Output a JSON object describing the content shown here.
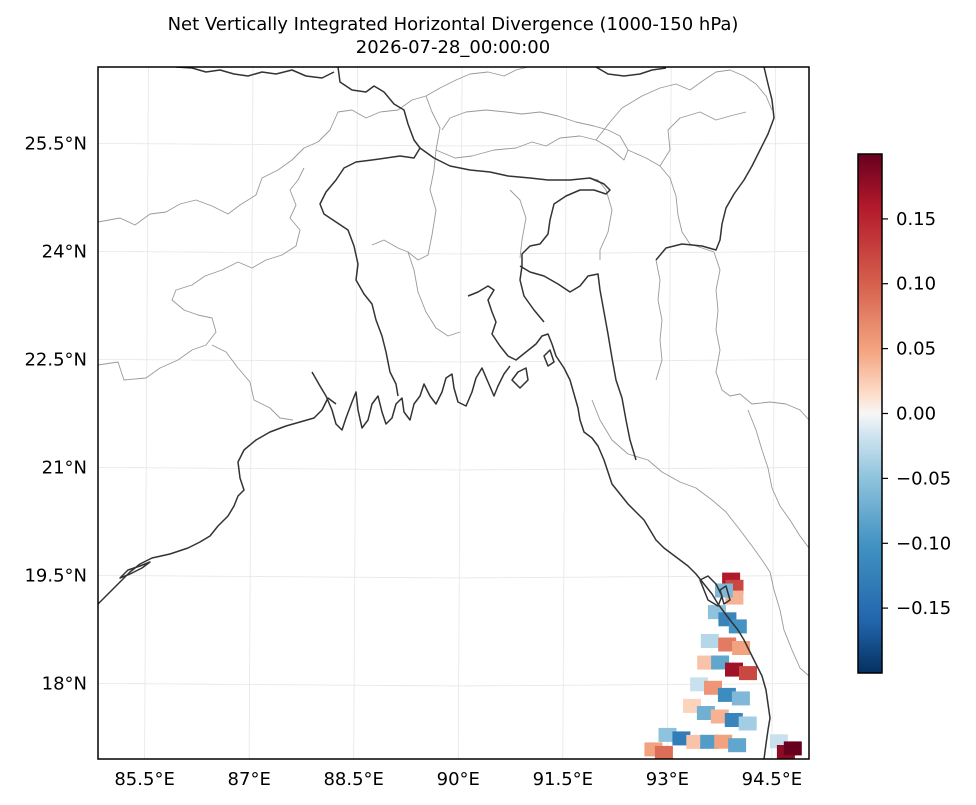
{
  "chart_data": {
    "type": "heatmap",
    "title": "Net Vertically Integrated Horizontal Divergence (1000-150 hPa)",
    "subtitle": "2026-07-28_00:00:00",
    "xlabel": "",
    "ylabel": "",
    "x_ticks": [
      85.5,
      87,
      88.5,
      90,
      91.5,
      93,
      94.5
    ],
    "x_tick_labels": [
      "85.5°E",
      "87°E",
      "88.5°E",
      "90°E",
      "91.5°E",
      "93°E",
      "94.5°E"
    ],
    "y_ticks": [
      25.5,
      24,
      22.5,
      21,
      19.5,
      18
    ],
    "y_tick_labels": [
      "25.5°N",
      "24°N",
      "22.5°N",
      "21°N",
      "19.5°N",
      "18°N"
    ],
    "xlim": [
      84.85,
      94.85
    ],
    "ylim": [
      17.0,
      26.6
    ],
    "grid": true,
    "colormap": "RdBu_r",
    "vmin": -0.2,
    "vmax": 0.2,
    "colorbar_ticks": [
      0.15,
      0.1,
      0.05,
      0.0,
      -0.05,
      -0.1,
      -0.15
    ],
    "colorbar_tick_labels": [
      "0.15",
      "0.10",
      "0.05",
      "0.00",
      "−0.05",
      "−0.10",
      "−0.15"
    ],
    "colors": {
      "neg": "#053061",
      "mid": "#f7f7f7",
      "pos": "#67001f",
      "coast": "#333333",
      "border": "#999999"
    },
    "data_region": "Values only present over the Bay of Bengal near the Myanmar coast, roughly 93–94.5°E, 17–19.5°N",
    "cells": [
      {
        "lon": 93.9,
        "lat": 19.45,
        "v": 0.16
      },
      {
        "lon": 93.95,
        "lat": 19.35,
        "v": 0.12
      },
      {
        "lon": 93.95,
        "lat": 19.2,
        "v": 0.04
      },
      {
        "lon": 93.8,
        "lat": 19.3,
        "v": -0.06
      },
      {
        "lon": 93.7,
        "lat": 19.0,
        "v": -0.05
      },
      {
        "lon": 93.85,
        "lat": 18.9,
        "v": -0.12
      },
      {
        "lon": 94.0,
        "lat": 18.8,
        "v": -0.1
      },
      {
        "lon": 93.6,
        "lat": 18.6,
        "v": -0.03
      },
      {
        "lon": 93.85,
        "lat": 18.55,
        "v": 0.08
      },
      {
        "lon": 94.05,
        "lat": 18.5,
        "v": 0.05
      },
      {
        "lon": 93.55,
        "lat": 18.3,
        "v": 0.03
      },
      {
        "lon": 93.75,
        "lat": 18.3,
        "v": -0.08
      },
      {
        "lon": 93.95,
        "lat": 18.2,
        "v": 0.17
      },
      {
        "lon": 94.15,
        "lat": 18.15,
        "v": 0.12
      },
      {
        "lon": 93.45,
        "lat": 18.0,
        "v": -0.02
      },
      {
        "lon": 93.65,
        "lat": 17.95,
        "v": 0.06
      },
      {
        "lon": 93.85,
        "lat": 17.85,
        "v": -0.11
      },
      {
        "lon": 94.05,
        "lat": 17.8,
        "v": -0.06
      },
      {
        "lon": 93.35,
        "lat": 17.7,
        "v": 0.02
      },
      {
        "lon": 93.55,
        "lat": 17.6,
        "v": -0.07
      },
      {
        "lon": 93.75,
        "lat": 17.55,
        "v": 0.04
      },
      {
        "lon": 93.95,
        "lat": 17.5,
        "v": -0.12
      },
      {
        "lon": 94.15,
        "lat": 17.45,
        "v": -0.04
      },
      {
        "lon": 93.0,
        "lat": 17.3,
        "v": -0.05
      },
      {
        "lon": 93.2,
        "lat": 17.25,
        "v": -0.13
      },
      {
        "lon": 93.4,
        "lat": 17.2,
        "v": 0.03
      },
      {
        "lon": 93.6,
        "lat": 17.2,
        "v": -0.09
      },
      {
        "lon": 93.8,
        "lat": 17.2,
        "v": 0.05
      },
      {
        "lon": 94.0,
        "lat": 17.15,
        "v": -0.08
      },
      {
        "lon": 92.8,
        "lat": 17.1,
        "v": 0.05
      },
      {
        "lon": 92.95,
        "lat": 17.05,
        "v": 0.09
      },
      {
        "lon": 94.6,
        "lat": 17.2,
        "v": -0.02
      },
      {
        "lon": 94.7,
        "lat": 17.05,
        "v": 0.18
      },
      {
        "lon": 94.8,
        "lat": 17.1,
        "v": 0.2
      }
    ]
  }
}
